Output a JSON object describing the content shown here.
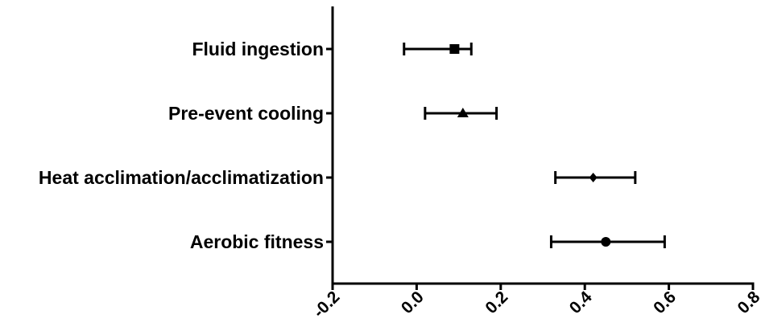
{
  "chart_data": {
    "type": "forest",
    "categories": [
      "Fluid ingestion",
      "Pre-event cooling",
      "Heat acclimation/acclimatization",
      "Aerobic fitness"
    ],
    "points": [
      {
        "category": "Fluid ingestion",
        "value": 0.09,
        "lower": -0.03,
        "upper": 0.13,
        "marker": "square"
      },
      {
        "category": "Pre-event cooling",
        "value": 0.11,
        "lower": 0.02,
        "upper": 0.19,
        "marker": "triangle"
      },
      {
        "category": "Heat acclimation/acclimatization",
        "value": 0.42,
        "lower": 0.33,
        "upper": 0.52,
        "marker": "diamond"
      },
      {
        "category": "Aerobic fitness",
        "value": 0.45,
        "lower": 0.32,
        "upper": 0.59,
        "marker": "circle"
      }
    ],
    "xlim": [
      -0.2,
      0.8
    ],
    "xticks": [
      "-0.2",
      "0.0",
      "0.2",
      "0.4",
      "0.6",
      "0.8"
    ],
    "title": "",
    "xlabel": "",
    "ylabel": "",
    "grid": false,
    "color": "#000000"
  }
}
